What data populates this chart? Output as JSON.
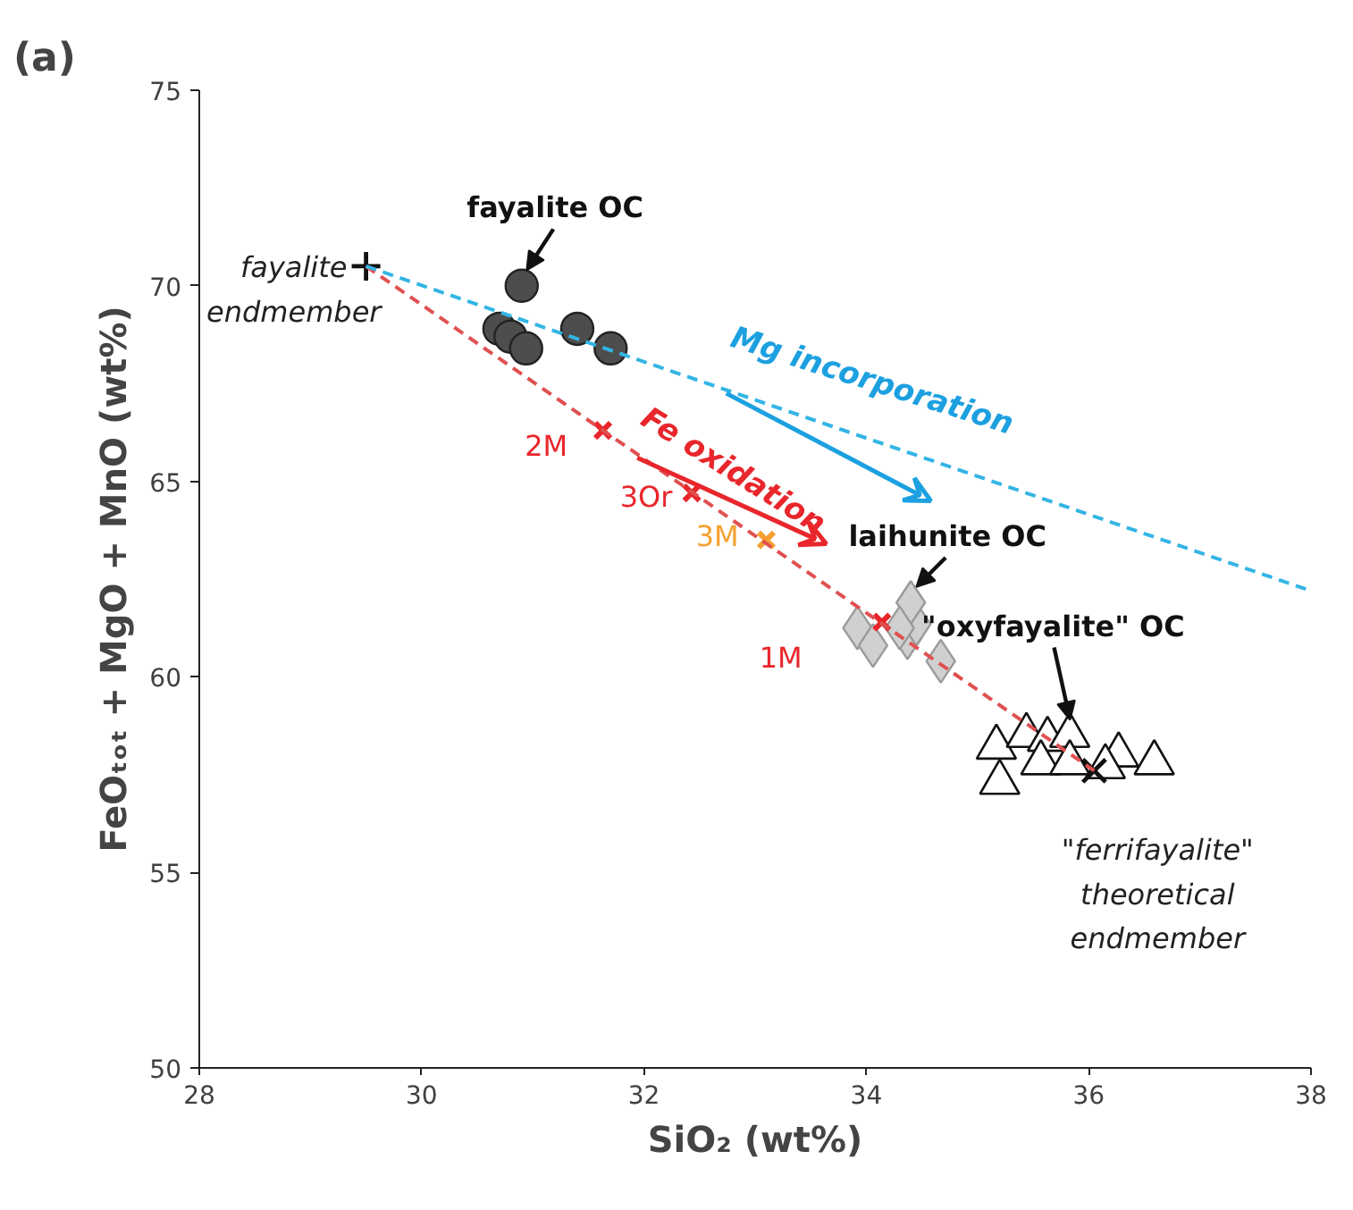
{
  "chart_data": {
    "type": "scatter",
    "title": "(a)",
    "xlabel": "SiO₂ (wt%)",
    "ylabel": "FeOₜₒₜ + MgO + MnO (wt%)",
    "xlim": [
      28,
      38
    ],
    "ylim": [
      50,
      75
    ],
    "xticks": [
      28,
      30,
      32,
      34,
      36,
      38
    ],
    "yticks": [
      50,
      55,
      60,
      65,
      70,
      75
    ],
    "grid": false,
    "annotations": [
      {
        "text": "fayalite OC",
        "x": 30.9,
        "y": 70.0
      },
      {
        "text": "laihunite OC",
        "x": 34.4,
        "y": 61.9
      },
      {
        "text": "\"oxyfayalite\" OC",
        "x": 35.86,
        "y": 58.5
      },
      {
        "text": "fayalite endmember",
        "x": 29.5,
        "y": 70.5
      },
      {
        "text": "\"ferrifayalite\" theoretical endmember",
        "x": 36.05,
        "y": 57.6
      },
      {
        "text": "2M",
        "x": 31.63,
        "y": 66.3
      },
      {
        "text": "3Or",
        "x": 32.43,
        "y": 64.7
      },
      {
        "text": "3M",
        "x": 33.1,
        "y": 63.5
      },
      {
        "text": "1M",
        "x": 34.14,
        "y": 61.4
      },
      "Fe oxidation",
      "Mg incorporation"
    ],
    "series": [
      {
        "color": "#4d4d4d",
        "marker": "circle",
        "x": [
          30.9,
          30.7,
          30.8,
          30.94,
          31.4,
          31.7
        ],
        "values": [
          70.0,
          68.9,
          68.7,
          68.4,
          68.9,
          68.4
        ]
      },
      {
        "color": "#d0d0d0",
        "marker": "diamond",
        "x": [
          33.92,
          34.06,
          34.37,
          34.45,
          34.4,
          34.3,
          34.67
        ],
        "values": [
          61.25,
          60.8,
          61.0,
          61.35,
          61.9,
          61.25,
          60.4
        ]
      },
      {
        "color": "#ffffff",
        "marker": "triangle",
        "x": [
          35.17,
          35.2,
          35.44,
          35.63,
          35.83,
          35.57,
          35.83,
          36.27,
          36.59,
          36.15
        ],
        "values": [
          58.2,
          57.3,
          58.5,
          58.4,
          58.5,
          57.8,
          57.8,
          58.0,
          57.8,
          57.7
        ]
      },
      {
        "color": "#111111",
        "marker": "cross",
        "x": [
          29.5
        ],
        "values": [
          70.5
        ]
      },
      {
        "color": "#111111",
        "marker": "cross",
        "x": [
          36.05
        ],
        "values": [
          57.6
        ]
      },
      {
        "color": "#e8262b",
        "marker": "cross",
        "x": [
          31.63,
          32.43,
          34.14
        ],
        "values": [
          66.3,
          64.7,
          61.4
        ]
      },
      {
        "color": "#f5a030",
        "marker": "cross",
        "x": [
          33.1
        ],
        "values": [
          63.5
        ]
      },
      {
        "type": "line",
        "color": "#e05050",
        "line_style": "dashed",
        "x": [
          29.5,
          36.05
        ],
        "values": [
          70.5,
          57.6
        ]
      },
      {
        "type": "line",
        "color": "#33b5e5",
        "line_style": "dashed",
        "x": [
          29.5,
          38
        ],
        "values": [
          70.5,
          62.2
        ]
      }
    ]
  }
}
